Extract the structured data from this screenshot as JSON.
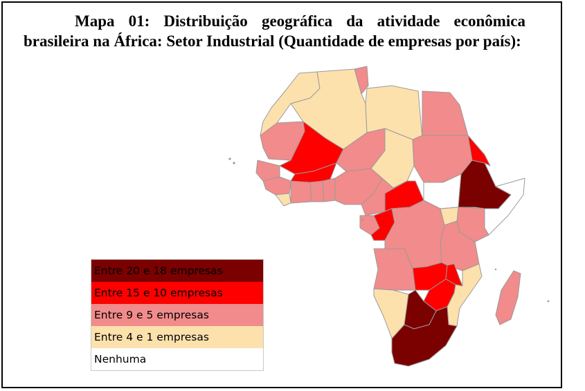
{
  "title": "Mapa 01: Distribuição geográfica da atividade econômica brasileira na África: Setor Industrial (Quantidade de empresas por país):",
  "colors": {
    "very_high": "#7b0000",
    "high": "#ff0000",
    "medium": "#f28b8b",
    "low": "#fde1ad",
    "none": "#ffffff",
    "border": "#9a9a9a"
  },
  "legend": [
    {
      "label": "Entre 20 e 18 empresas",
      "color": "#7b0000"
    },
    {
      "label": "Entre 15 e 10 empresas",
      "color": "#ff0000"
    },
    {
      "label": "Entre 9 e 5 empresas",
      "color": "#f28b8b"
    },
    {
      "label": "Entre 4 e 1 empresas",
      "color": "#fde1ad"
    },
    {
      "label": "Nenhuma",
      "color": "#ffffff"
    }
  ]
}
